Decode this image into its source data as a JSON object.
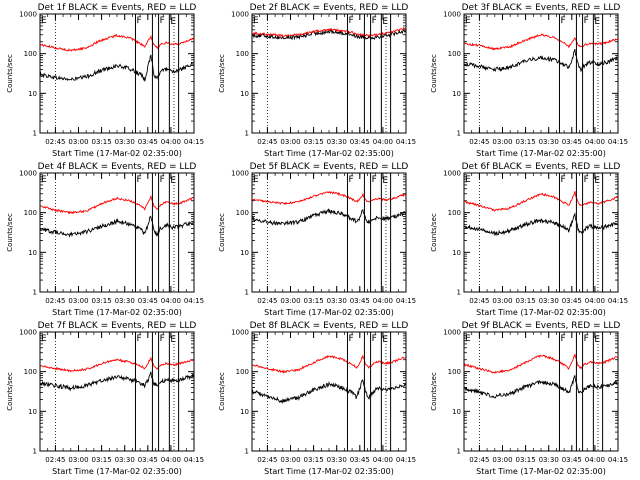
{
  "figure": {
    "panel_title_suffix": " BLACK = Events, RED = LLD",
    "y_label": "Counts/sec",
    "x_label": "Start Time (17-Mar-02 02:35:00)",
    "x_tick_labels": [
      "02:45",
      "03:00",
      "03:15",
      "03:30",
      "03:45",
      "04:00",
      "04:15"
    ],
    "y_tick_labels": [
      "1",
      "10",
      "100",
      "1000"
    ],
    "flag_labels": [
      "F",
      "F",
      "E"
    ],
    "colors": {
      "events": "#000000",
      "lld": "#ff0000",
      "axes": "#000000"
    }
  },
  "chart_data": [
    {
      "type": "line",
      "title": "Det 1f BLACK = Events, RED = LLD",
      "detector": "1f",
      "xlabel": "Start Time (17-Mar-02 02:35:00)",
      "ylabel": "Counts/sec",
      "yscale": "log",
      "ylim": [
        1,
        1000
      ],
      "x_range_min": [
        0,
        100
      ],
      "x_ticks_min": [
        10,
        25,
        40,
        55,
        70,
        85,
        100
      ],
      "vlines_min": [
        62,
        73,
        77,
        84,
        90
      ],
      "dotted_min": [
        10,
        87
      ],
      "series": [
        {
          "name": "Events",
          "color": "#000000",
          "x_min": [
            0,
            10,
            20,
            30,
            40,
            50,
            58,
            62,
            66,
            68,
            70,
            72,
            74,
            76,
            78,
            82,
            87,
            92,
            100
          ],
          "y": [
            30,
            25,
            22,
            26,
            38,
            50,
            42,
            35,
            28,
            22,
            45,
            95,
            30,
            22,
            35,
            42,
            36,
            40,
            55
          ]
        },
        {
          "name": "LLD",
          "color": "#ff0000",
          "x_min": [
            0,
            10,
            20,
            30,
            40,
            50,
            58,
            62,
            66,
            68,
            70,
            72,
            74,
            76,
            78,
            82,
            87,
            92,
            100
          ],
          "y": [
            170,
            140,
            120,
            140,
            220,
            290,
            250,
            210,
            170,
            145,
            200,
            270,
            165,
            140,
            165,
            190,
            170,
            185,
            250
          ]
        }
      ]
    },
    {
      "type": "line",
      "title": "Det 2f BLACK = Events, RED = LLD",
      "detector": "2f",
      "xlabel": "Start Time (17-Mar-02 02:35:00)",
      "ylabel": "Counts/sec",
      "yscale": "log",
      "ylim": [
        1,
        1000
      ],
      "x_range_min": [
        0,
        100
      ],
      "x_ticks_min": [
        10,
        25,
        40,
        55,
        70,
        85,
        100
      ],
      "vlines_min": [
        62,
        73,
        77,
        84,
        90
      ],
      "dotted_min": [
        10,
        87
      ],
      "series": [
        {
          "name": "Events",
          "color": "#000000",
          "x_min": [
            0,
            10,
            20,
            30,
            40,
            50,
            58,
            62,
            66,
            68,
            70,
            72,
            74,
            76,
            78,
            82,
            87,
            92,
            100
          ],
          "y": [
            290,
            280,
            250,
            265,
            320,
            360,
            340,
            320,
            300,
            270,
            270,
            270,
            260,
            255,
            255,
            270,
            290,
            320,
            390
          ]
        },
        {
          "name": "LLD",
          "color": "#ff0000",
          "x_min": [
            0,
            10,
            20,
            30,
            40,
            50,
            58,
            62,
            66,
            68,
            70,
            72,
            74,
            76,
            78,
            82,
            87,
            92,
            100
          ],
          "y": [
            330,
            310,
            285,
            300,
            360,
            410,
            380,
            360,
            340,
            310,
            305,
            300,
            290,
            285,
            290,
            305,
            330,
            360,
            440
          ]
        }
      ]
    },
    {
      "type": "line",
      "title": "Det 3f BLACK = Events, RED = LLD",
      "detector": "3f",
      "xlabel": "Start Time (17-Mar-02 02:35:00)",
      "ylabel": "Counts/sec",
      "yscale": "log",
      "ylim": [
        1,
        1000
      ],
      "x_range_min": [
        0,
        100
      ],
      "x_ticks_min": [
        10,
        25,
        40,
        55,
        70,
        85,
        100
      ],
      "vlines_min": [
        62,
        73,
        77,
        84,
        90
      ],
      "dotted_min": [
        10,
        87
      ],
      "series": [
        {
          "name": "Events",
          "color": "#000000",
          "x_min": [
            0,
            10,
            20,
            30,
            40,
            50,
            58,
            62,
            66,
            68,
            70,
            72,
            74,
            76,
            78,
            82,
            87,
            92,
            100
          ],
          "y": [
            55,
            48,
            40,
            45,
            65,
            80,
            70,
            60,
            52,
            45,
            70,
            120,
            55,
            40,
            50,
            60,
            55,
            60,
            80
          ]
        },
        {
          "name": "LLD",
          "color": "#ff0000",
          "x_min": [
            0,
            10,
            20,
            30,
            40,
            50,
            58,
            62,
            66,
            68,
            70,
            72,
            74,
            76,
            78,
            82,
            87,
            92,
            100
          ],
          "y": [
            180,
            160,
            130,
            150,
            220,
            300,
            260,
            220,
            180,
            150,
            190,
            260,
            170,
            150,
            165,
            185,
            175,
            190,
            240
          ]
        }
      ]
    },
    {
      "type": "line",
      "title": "Det 4f BLACK = Events, RED = LLD",
      "detector": "4f",
      "xlabel": "Start Time (17-Mar-02 02:35:00)",
      "ylabel": "Counts/sec",
      "yscale": "log",
      "ylim": [
        1,
        1000
      ],
      "x_range_min": [
        0,
        100
      ],
      "x_ticks_min": [
        10,
        25,
        40,
        55,
        70,
        85,
        100
      ],
      "vlines_min": [
        62,
        73,
        77,
        84,
        90
      ],
      "dotted_min": [
        10,
        87
      ],
      "series": [
        {
          "name": "Events",
          "color": "#000000",
          "x_min": [
            0,
            10,
            20,
            30,
            40,
            50,
            58,
            62,
            66,
            68,
            70,
            72,
            74,
            76,
            78,
            82,
            87,
            92,
            100
          ],
          "y": [
            40,
            32,
            28,
            33,
            45,
            60,
            52,
            45,
            36,
            30,
            48,
            85,
            35,
            28,
            40,
            48,
            42,
            46,
            60
          ]
        },
        {
          "name": "LLD",
          "color": "#ff0000",
          "x_min": [
            0,
            10,
            20,
            30,
            40,
            50,
            58,
            62,
            66,
            68,
            70,
            72,
            74,
            76,
            78,
            82,
            87,
            92,
            100
          ],
          "y": [
            150,
            115,
            100,
            110,
            170,
            230,
            200,
            175,
            145,
            125,
            175,
            260,
            150,
            125,
            155,
            185,
            165,
            180,
            240
          ]
        }
      ]
    },
    {
      "type": "line",
      "title": "Det 5f BLACK = Events, RED = LLD",
      "detector": "5f",
      "xlabel": "Start Time (17-Mar-02 02:35:00)",
      "ylabel": "Counts/sec",
      "yscale": "log",
      "ylim": [
        1,
        1000
      ],
      "x_range_min": [
        0,
        100
      ],
      "x_ticks_min": [
        10,
        25,
        40,
        55,
        70,
        85,
        100
      ],
      "vlines_min": [
        62,
        73,
        77,
        84,
        90
      ],
      "dotted_min": [
        10,
        87
      ],
      "series": [
        {
          "name": "Events",
          "color": "#000000",
          "x_min": [
            0,
            10,
            20,
            30,
            40,
            50,
            58,
            62,
            66,
            68,
            70,
            72,
            74,
            76,
            78,
            82,
            87,
            92,
            100
          ],
          "y": [
            70,
            58,
            52,
            58,
            85,
            110,
            95,
            80,
            68,
            60,
            75,
            120,
            65,
            55,
            65,
            75,
            70,
            78,
            100
          ]
        },
        {
          "name": "LLD",
          "color": "#ff0000",
          "x_min": [
            0,
            10,
            20,
            30,
            40,
            50,
            58,
            62,
            66,
            68,
            70,
            72,
            74,
            76,
            78,
            82,
            87,
            92,
            100
          ],
          "y": [
            220,
            190,
            170,
            185,
            260,
            330,
            290,
            250,
            210,
            185,
            220,
            290,
            200,
            180,
            200,
            230,
            210,
            230,
            290
          ]
        }
      ]
    },
    {
      "type": "line",
      "title": "Det 6f BLACK = Events, RED = LLD",
      "detector": "6f",
      "xlabel": "Start Time (17-Mar-02 02:35:00)",
      "ylabel": "Counts/sec",
      "yscale": "log",
      "ylim": [
        1,
        1000
      ],
      "x_range_min": [
        0,
        100
      ],
      "x_ticks_min": [
        10,
        25,
        40,
        55,
        70,
        85,
        100
      ],
      "vlines_min": [
        62,
        73,
        77,
        84,
        90
      ],
      "dotted_min": [
        10,
        87
      ],
      "series": [
        {
          "name": "Events",
          "color": "#000000",
          "x_min": [
            0,
            10,
            20,
            30,
            40,
            50,
            58,
            62,
            66,
            68,
            70,
            72,
            74,
            76,
            78,
            82,
            87,
            92,
            100
          ],
          "y": [
            45,
            38,
            30,
            35,
            50,
            65,
            56,
            48,
            40,
            34,
            55,
            90,
            38,
            30,
            38,
            45,
            40,
            44,
            55
          ]
        },
        {
          "name": "LLD",
          "color": "#ff0000",
          "x_min": [
            0,
            10,
            20,
            30,
            40,
            50,
            58,
            62,
            66,
            68,
            70,
            72,
            74,
            76,
            78,
            82,
            87,
            92,
            100
          ],
          "y": [
            190,
            150,
            115,
            130,
            200,
            300,
            250,
            210,
            170,
            150,
            220,
            330,
            180,
            150,
            165,
            180,
            170,
            190,
            250
          ]
        }
      ]
    },
    {
      "type": "line",
      "title": "Det 7f BLACK = Events, RED = LLD",
      "detector": "7f",
      "xlabel": "Start Time (17-Mar-02 02:35:00)",
      "ylabel": "Counts/sec",
      "yscale": "log",
      "ylim": [
        1,
        1000
      ],
      "x_range_min": [
        0,
        100
      ],
      "x_ticks_min": [
        10,
        25,
        40,
        55,
        70,
        85,
        100
      ],
      "vlines_min": [
        62,
        73,
        77,
        84,
        90
      ],
      "dotted_min": [
        10,
        87
      ],
      "series": [
        {
          "name": "Events",
          "color": "#000000",
          "x_min": [
            0,
            10,
            20,
            30,
            40,
            50,
            58,
            62,
            66,
            68,
            70,
            72,
            74,
            76,
            78,
            82,
            87,
            92,
            100
          ],
          "y": [
            50,
            45,
            38,
            45,
            60,
            75,
            65,
            58,
            50,
            45,
            60,
            90,
            50,
            45,
            55,
            62,
            58,
            65,
            80
          ]
        },
        {
          "name": "LLD",
          "color": "#ff0000",
          "x_min": [
            0,
            10,
            20,
            30,
            40,
            50,
            58,
            62,
            66,
            68,
            70,
            72,
            74,
            76,
            78,
            82,
            87,
            92,
            100
          ],
          "y": [
            140,
            120,
            105,
            115,
            160,
            200,
            175,
            155,
            135,
            120,
            160,
            230,
            135,
            120,
            140,
            160,
            150,
            165,
            200
          ]
        }
      ]
    },
    {
      "type": "line",
      "title": "Det 8f BLACK = Events, RED = LLD",
      "detector": "8f",
      "xlabel": "Start Time (17-Mar-02 02:35:00)",
      "ylabel": "Counts/sec",
      "yscale": "log",
      "ylim": [
        1,
        1000
      ],
      "x_range_min": [
        0,
        100
      ],
      "x_ticks_min": [
        10,
        25,
        40,
        55,
        70,
        85,
        100
      ],
      "vlines_min": [
        62,
        73,
        77,
        84,
        90
      ],
      "dotted_min": [
        10,
        87
      ],
      "series": [
        {
          "name": "Events",
          "color": "#000000",
          "x_min": [
            0,
            10,
            20,
            30,
            40,
            50,
            58,
            62,
            66,
            68,
            70,
            72,
            74,
            76,
            78,
            82,
            87,
            92,
            100
          ],
          "y": [
            32,
            24,
            18,
            22,
            35,
            48,
            40,
            34,
            28,
            22,
            38,
            65,
            28,
            22,
            30,
            38,
            34,
            38,
            50
          ]
        },
        {
          "name": "LLD",
          "color": "#ff0000",
          "x_min": [
            0,
            10,
            20,
            30,
            40,
            50,
            58,
            62,
            66,
            68,
            70,
            72,
            74,
            76,
            78,
            82,
            87,
            92,
            100
          ],
          "y": [
            150,
            120,
            100,
            110,
            170,
            250,
            210,
            175,
            145,
            125,
            170,
            250,
            150,
            125,
            150,
            180,
            160,
            180,
            240
          ]
        }
      ]
    },
    {
      "type": "line",
      "title": "Det 9f BLACK = Events, RED = LLD",
      "detector": "9f",
      "xlabel": "Start Time (17-Mar-02 02:35:00)",
      "ylabel": "Counts/sec",
      "yscale": "log",
      "ylim": [
        1,
        1000
      ],
      "x_range_min": [
        0,
        100
      ],
      "x_ticks_min": [
        10,
        25,
        40,
        55,
        70,
        85,
        100
      ],
      "vlines_min": [
        62,
        73,
        77,
        84,
        90
      ],
      "dotted_min": [
        10,
        87
      ],
      "series": [
        {
          "name": "Events",
          "color": "#000000",
          "x_min": [
            0,
            10,
            20,
            30,
            40,
            50,
            58,
            62,
            66,
            68,
            70,
            72,
            74,
            76,
            78,
            82,
            87,
            92,
            100
          ],
          "y": [
            38,
            30,
            24,
            28,
            42,
            55,
            48,
            40,
            34,
            28,
            45,
            80,
            34,
            28,
            36,
            44,
            40,
            44,
            55
          ]
        },
        {
          "name": "LLD",
          "color": "#ff0000",
          "x_min": [
            0,
            10,
            20,
            30,
            40,
            50,
            58,
            62,
            66,
            68,
            70,
            72,
            74,
            76,
            78,
            82,
            87,
            92,
            100
          ],
          "y": [
            150,
            120,
            95,
            110,
            170,
            260,
            210,
            175,
            140,
            120,
            175,
            270,
            145,
            120,
            150,
            175,
            160,
            180,
            240
          ]
        }
      ]
    }
  ]
}
